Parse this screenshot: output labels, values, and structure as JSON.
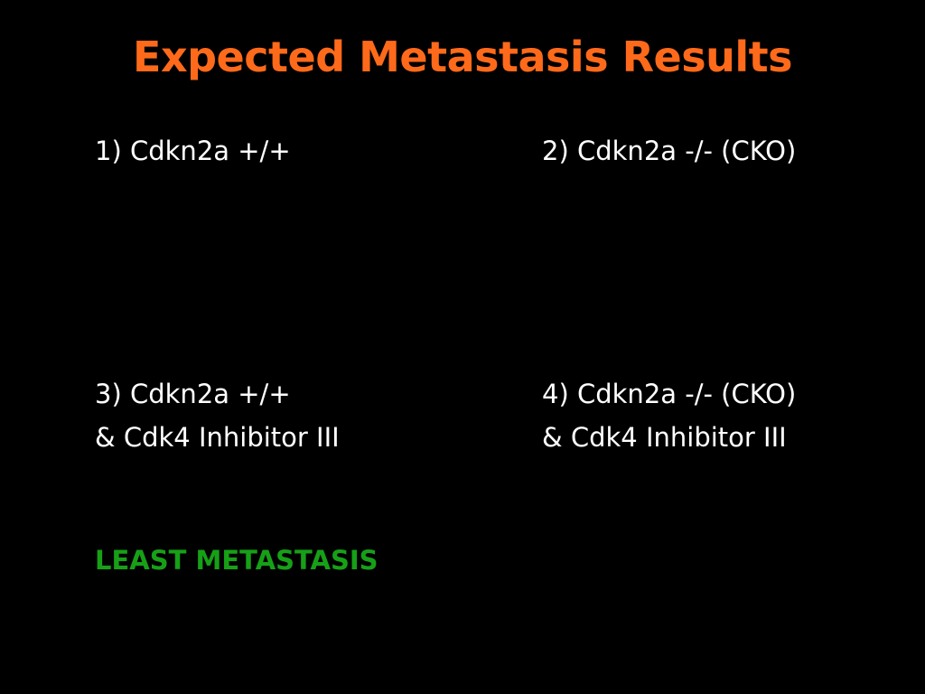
{
  "slide": {
    "title": "Expected Metastasis Results",
    "items": [
      {
        "line1": "1) Cdkn2a +/+",
        "line2": ""
      },
      {
        "line1": "2) Cdkn2a -/- (CKO)",
        "line2": ""
      },
      {
        "line1": "3) Cdkn2a +/+",
        "line2": "& Cdk4 Inhibitor III"
      },
      {
        "line1": "4) Cdkn2a -/- (CKO)",
        "line2": "& Cdk4 Inhibitor III"
      }
    ],
    "note": "LEAST METASTASIS"
  },
  "colors": {
    "background": "#000000",
    "title": "#ff6a1a",
    "text": "#ffffff",
    "note": "#17a017"
  }
}
